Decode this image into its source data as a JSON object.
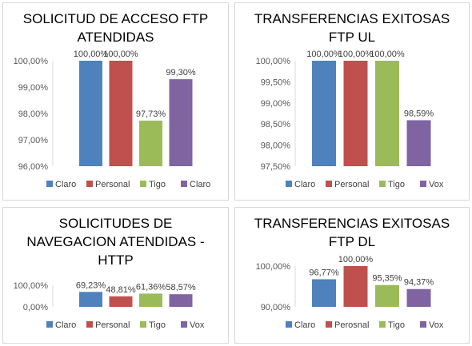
{
  "chart_data": [
    {
      "type": "bar",
      "title_lines": [
        "SOLICITUD DE ACCESO FTP",
        "ATENDIDAS"
      ],
      "title": "SOLICITUD DE ACCESO FTP ATENDIDAS",
      "categories": [
        "Claro",
        "Personal",
        "Tigo",
        "Claro"
      ],
      "values": [
        100.0,
        100.0,
        97.73,
        99.3
      ],
      "data_labels": [
        "100,00%",
        "100,00%",
        "97,73%",
        "99,30%"
      ],
      "colors": [
        "#4f81bd",
        "#c0504d",
        "#9bbb59",
        "#8064a2"
      ],
      "ylim": [
        96,
        100
      ],
      "yticks": [
        96,
        97,
        98,
        99,
        100
      ],
      "ytick_labels": [
        "96,00%",
        "97,00%",
        "98,00%",
        "99,00%",
        "100,00%"
      ],
      "grid": false,
      "legend": "bottom"
    },
    {
      "type": "bar",
      "title_lines": [
        "TRANSFERENCIAS EXITOSAS",
        "FTP UL"
      ],
      "title": "TRANSFERENCIAS EXITOSAS FTP UL",
      "categories": [
        "Claro",
        "Personal",
        "Tigo",
        "Vox"
      ],
      "values": [
        100.0,
        100.0,
        100.0,
        98.59
      ],
      "data_labels": [
        "100,00%",
        "100,00%",
        "100,00%",
        "98,59%"
      ],
      "colors": [
        "#4f81bd",
        "#c0504d",
        "#9bbb59",
        "#8064a2"
      ],
      "ylim": [
        97.5,
        100
      ],
      "yticks": [
        97.5,
        98,
        98.5,
        99,
        99.5,
        100
      ],
      "ytick_labels": [
        "97,50%",
        "98,00%",
        "98,50%",
        "99,00%",
        "99,50%",
        "100,00%"
      ],
      "grid": false,
      "legend": "bottom"
    },
    {
      "type": "bar",
      "title_lines": [
        "SOLICITUDES DE",
        "NAVEGACION ATENDIDAS -",
        "HTTP"
      ],
      "title": "SOLICITUDES DE NAVEGACION ATENDIDAS - HTTP",
      "categories": [
        "Claro",
        "Personal",
        "Tigo",
        "Vox"
      ],
      "values": [
        69.23,
        48.81,
        61.36,
        58.57
      ],
      "data_labels": [
        "69,23%",
        "48,81%",
        "61,36%",
        "58,57%"
      ],
      "colors": [
        "#4f81bd",
        "#c0504d",
        "#9bbb59",
        "#8064a2"
      ],
      "ylim": [
        0,
        100
      ],
      "yticks": [
        0,
        100
      ],
      "ytick_labels": [
        "0,00%",
        "100,00%"
      ],
      "grid": false,
      "legend": "bottom"
    },
    {
      "type": "bar",
      "title_lines": [
        "TRANSFERENCIAS EXITOSAS",
        "FTP DL"
      ],
      "title": "TRANSFERENCIAS EXITOSAS FTP DL",
      "categories": [
        "Claro",
        "Perosnal",
        "Tigo",
        "Vox"
      ],
      "values": [
        96.77,
        100.0,
        95.35,
        94.37
      ],
      "data_labels": [
        "96,77%",
        "100,00%",
        "95,35%",
        "94,37%"
      ],
      "colors": [
        "#4f81bd",
        "#c0504d",
        "#9bbb59",
        "#8064a2"
      ],
      "ylim": [
        90,
        100
      ],
      "yticks": [
        90,
        100
      ],
      "ytick_labels": [
        "90,00%",
        "100,00%"
      ],
      "grid": false,
      "legend": "bottom"
    }
  ]
}
